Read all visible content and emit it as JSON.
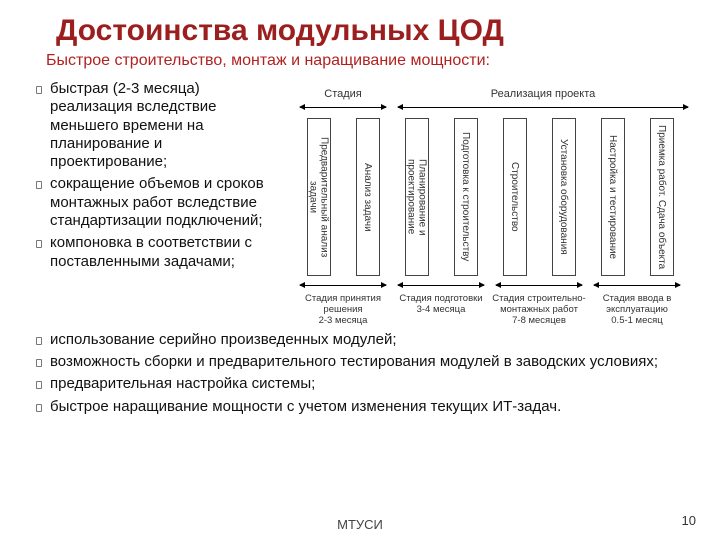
{
  "title": "Достоинства модульных ЦОД",
  "subtitle": "Быстрое строительство, монтаж и наращивание мощности:",
  "bullets_left": [
    "быстрая (2-3 месяца) реализация вследствие меньшего времени на планирование и проектирование;",
    "сокращение объемов и сроков монтажных работ вследствие стандартизации подключений;",
    "компоновка в соответствии с поставленными задачами;"
  ],
  "bullets_wide": [
    "использование серийно произведенных модулей;",
    "возможность сборки и предварительного тестирования модулей  в заводских условиях;",
    "предварительная настройка системы;",
    "быстрое наращивание мощности с учетом изменения текущих ИТ-задач."
  ],
  "diagram": {
    "top_headers": {
      "h1": "Стадия",
      "h2": "Реализация проекта"
    },
    "boxes_g1": [
      "Предварительный анализ задачи",
      "Анализ задачи"
    ],
    "boxes_g2": [
      "Планирование и проектирование",
      "Подготовка к строительству"
    ],
    "boxes_g3": [
      "Строительство",
      "Установка оборудования"
    ],
    "boxes_g4": [
      "Настройка и тестирование",
      "Приемка работ. Сдача объекта"
    ],
    "stage_labels": [
      "Стадия принятия решения\n2-3 месяца",
      "Стадия подготовки\n3-4 месяца",
      "Стадия строительно-монтажных работ\n7-8 месяцев",
      "Стадия ввода в эксплуатацию\n0.5-1 месяц"
    ]
  },
  "footer_org": "МТУСИ",
  "footer_page": "10",
  "colors": {
    "title": "#9c1f1f",
    "subtitle": "#b32020",
    "text": "#111111",
    "box_border": "#444444",
    "background": "#ffffff"
  }
}
